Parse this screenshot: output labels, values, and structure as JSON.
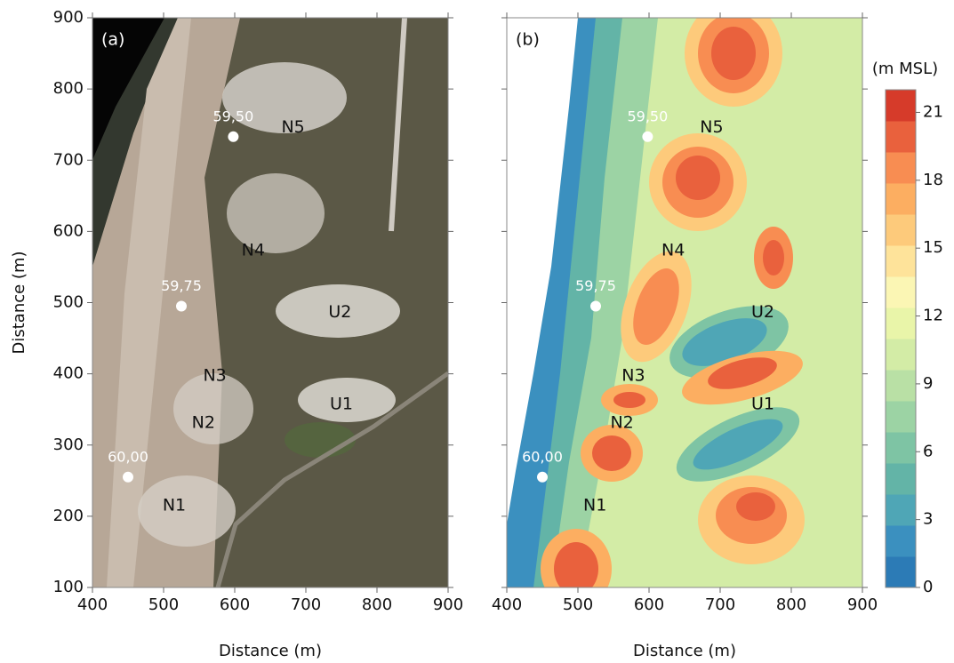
{
  "chart_data": [
    {
      "type": "image",
      "panel_label": "(a)",
      "xlabel": "Distance (m)",
      "ylabel": "Distance (m)",
      "xlim": [
        400,
        900
      ],
      "ylim": [
        100,
        900
      ],
      "xticks": [
        400,
        500,
        600,
        700,
        800,
        900
      ],
      "yticks": [
        100,
        200,
        300,
        400,
        500,
        600,
        700,
        800,
        900
      ],
      "points": {
        "x": [
          450,
          525,
          598
        ],
        "y": [
          255,
          495,
          733
        ],
        "labels": [
          "60,00",
          "59,75",
          "59,50"
        ],
        "color": "#ffffff"
      },
      "annotations": [
        {
          "text": "N5",
          "x": 682,
          "y": 746
        },
        {
          "text": "N4",
          "x": 626,
          "y": 573
        },
        {
          "text": "U2",
          "x": 748,
          "y": 486
        },
        {
          "text": "N3",
          "x": 572,
          "y": 397
        },
        {
          "text": "U1",
          "x": 750,
          "y": 357
        },
        {
          "text": "N2",
          "x": 556,
          "y": 331
        },
        {
          "text": "N1",
          "x": 515,
          "y": 215
        }
      ]
    },
    {
      "type": "contour",
      "panel_label": "(b)",
      "xlabel": "Distance (m)",
      "xlim": [
        400,
        900
      ],
      "ylim": [
        100,
        900
      ],
      "xticks": [
        400,
        500,
        600,
        700,
        800,
        900
      ],
      "yticks": [
        100,
        200,
        300,
        400,
        500,
        600,
        700,
        800,
        900
      ],
      "points": {
        "x": [
          450,
          525,
          598
        ],
        "y": [
          255,
          495,
          733
        ],
        "labels": [
          "60,00",
          "59,75",
          "59,50"
        ],
        "color": "#ffffff"
      },
      "annotations": [
        {
          "text": "N5",
          "x": 688,
          "y": 746
        },
        {
          "text": "N4",
          "x": 634,
          "y": 573
        },
        {
          "text": "U2",
          "x": 760,
          "y": 486
        },
        {
          "text": "N3",
          "x": 578,
          "y": 397
        },
        {
          "text": "U1",
          "x": 760,
          "y": 357
        },
        {
          "text": "N2",
          "x": 562,
          "y": 331
        },
        {
          "text": "N1",
          "x": 524,
          "y": 215
        }
      ],
      "colorbar": {
        "label": "(m MSL)",
        "lim": [
          0,
          22
        ],
        "ticks": [
          0,
          3,
          6,
          9,
          12,
          15,
          18,
          21
        ],
        "colors": [
          "#2c7bb6",
          "#3b90bf",
          "#4fa6b6",
          "#63b4a7",
          "#7ec4a4",
          "#9cd3a4",
          "#b9e0a5",
          "#d3eca6",
          "#e9f5a9",
          "#fbf6b4",
          "#fee39a",
          "#fdca7b",
          "#fcae61",
          "#f88d52",
          "#e9613d",
          "#d63b2a"
        ]
      }
    }
  ]
}
